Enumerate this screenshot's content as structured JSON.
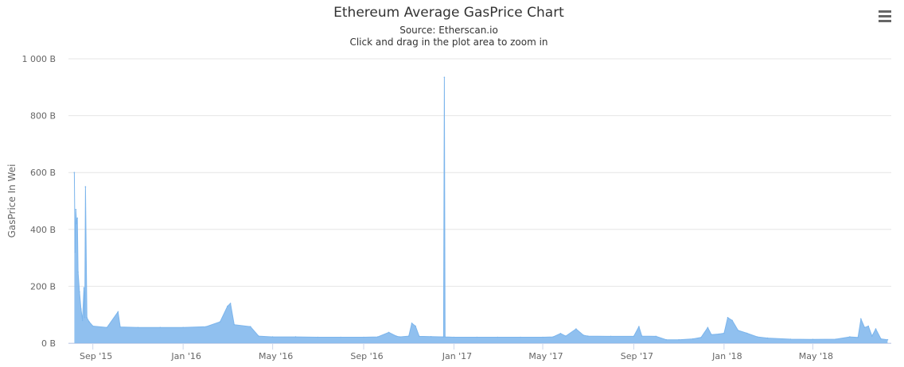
{
  "chart_data": {
    "type": "area",
    "title": "Ethereum Average GasPrice Chart",
    "subtitle_source": "Source: Etherscan.io",
    "subtitle_hint": "Click and drag in the plot area to zoom in",
    "ylabel": "GasPrice In Wei",
    "xlabel": "",
    "ylim": [
      0,
      1000
    ],
    "y_unit": "B (billion Wei)",
    "y_ticks": [
      "0 B",
      "200 B",
      "400 B",
      "600 B",
      "800 B",
      "1 000 B"
    ],
    "y_tick_values": [
      0,
      200,
      400,
      600,
      800,
      1000
    ],
    "x_ticks": [
      "Sep '15",
      "Jan '16",
      "May '16",
      "Sep '16",
      "Jan '17",
      "May '17",
      "Sep '17",
      "Jan '18",
      "May '18"
    ],
    "x_tick_values": [
      "2015-09-01",
      "2016-01-01",
      "2016-05-01",
      "2016-09-01",
      "2017-01-01",
      "2017-05-01",
      "2017-09-01",
      "2018-01-01",
      "2018-05-01"
    ],
    "xlim": [
      "2015-07-30",
      "2018-08-15"
    ],
    "grid": true,
    "series": [
      {
        "name": "GasPrice",
        "color": "#7cb5ec",
        "points": [
          [
            "2015-08-07",
            600
          ],
          [
            "2015-08-08",
            320
          ],
          [
            "2015-08-09",
            470
          ],
          [
            "2015-08-10",
            420
          ],
          [
            "2015-08-11",
            440
          ],
          [
            "2015-08-12",
            250
          ],
          [
            "2015-08-14",
            180
          ],
          [
            "2015-08-16",
            120
          ],
          [
            "2015-08-18",
            80
          ],
          [
            "2015-08-20",
            195
          ],
          [
            "2015-08-21",
            90
          ],
          [
            "2015-08-22",
            550
          ],
          [
            "2015-08-24",
            90
          ],
          [
            "2015-08-27",
            75
          ],
          [
            "2015-09-01",
            60
          ],
          [
            "2015-09-20",
            55
          ],
          [
            "2015-10-05",
            110
          ],
          [
            "2015-10-08",
            57
          ],
          [
            "2015-11-01",
            55
          ],
          [
            "2015-12-01",
            55
          ],
          [
            "2016-01-01",
            55
          ],
          [
            "2016-02-01",
            58
          ],
          [
            "2016-02-20",
            75
          ],
          [
            "2016-03-01",
            130
          ],
          [
            "2016-03-05",
            140
          ],
          [
            "2016-03-10",
            65
          ],
          [
            "2016-04-01",
            58
          ],
          [
            "2016-04-12",
            25
          ],
          [
            "2016-05-01",
            22
          ],
          [
            "2016-06-01",
            22
          ],
          [
            "2016-07-01",
            21
          ],
          [
            "2016-08-01",
            21
          ],
          [
            "2016-09-01",
            21
          ],
          [
            "2016-09-20",
            22
          ],
          [
            "2016-10-05",
            38
          ],
          [
            "2016-10-15",
            25
          ],
          [
            "2016-10-20",
            22
          ],
          [
            "2016-11-01",
            25
          ],
          [
            "2016-11-05",
            70
          ],
          [
            "2016-11-10",
            60
          ],
          [
            "2016-11-15",
            24
          ],
          [
            "2016-12-01",
            23
          ],
          [
            "2016-12-18",
            22
          ],
          [
            "2016-12-19",
            935
          ],
          [
            "2016-12-20",
            22
          ],
          [
            "2017-01-01",
            21
          ],
          [
            "2017-02-01",
            21
          ],
          [
            "2017-03-01",
            21
          ],
          [
            "2017-04-01",
            21
          ],
          [
            "2017-05-01",
            21
          ],
          [
            "2017-05-15",
            22
          ],
          [
            "2017-05-25",
            34
          ],
          [
            "2017-06-01",
            25
          ],
          [
            "2017-06-15",
            50
          ],
          [
            "2017-06-25",
            28
          ],
          [
            "2017-07-01",
            25
          ],
          [
            "2017-08-01",
            24
          ],
          [
            "2017-09-01",
            24
          ],
          [
            "2017-09-08",
            58
          ],
          [
            "2017-09-12",
            25
          ],
          [
            "2017-10-01",
            24
          ],
          [
            "2017-10-15",
            12
          ],
          [
            "2017-11-01",
            12
          ],
          [
            "2017-11-20",
            15
          ],
          [
            "2017-12-01",
            20
          ],
          [
            "2017-12-10",
            55
          ],
          [
            "2017-12-15",
            30
          ],
          [
            "2017-12-25",
            32
          ],
          [
            "2018-01-01",
            35
          ],
          [
            "2018-01-06",
            90
          ],
          [
            "2018-01-12",
            80
          ],
          [
            "2018-01-20",
            45
          ],
          [
            "2018-02-01",
            35
          ],
          [
            "2018-02-15",
            22
          ],
          [
            "2018-03-01",
            18
          ],
          [
            "2018-04-01",
            14
          ],
          [
            "2018-05-01",
            13
          ],
          [
            "2018-06-01",
            14
          ],
          [
            "2018-06-20",
            22
          ],
          [
            "2018-07-01",
            20
          ],
          [
            "2018-07-05",
            85
          ],
          [
            "2018-07-10",
            55
          ],
          [
            "2018-07-15",
            60
          ],
          [
            "2018-07-20",
            25
          ],
          [
            "2018-07-25",
            50
          ],
          [
            "2018-08-01",
            15
          ],
          [
            "2018-08-10",
            12
          ]
        ]
      }
    ]
  },
  "toolbar": {
    "menu_icon": "hamburger-menu-icon"
  }
}
